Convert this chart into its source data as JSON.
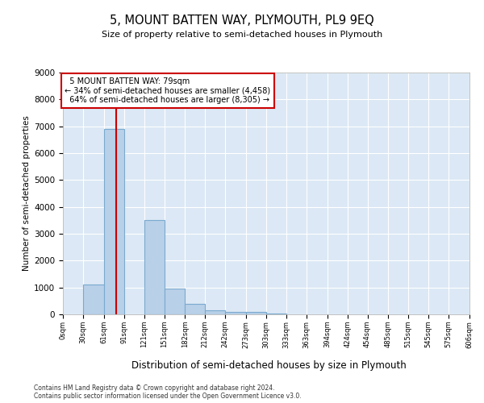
{
  "title1": "5, MOUNT BATTEN WAY, PLYMOUTH, PL9 9EQ",
  "title2": "Size of property relative to semi-detached houses in Plymouth",
  "xlabel": "Distribution of semi-detached houses by size in Plymouth",
  "ylabel": "Number of semi-detached properties",
  "property_size": 79,
  "property_label": "5 MOUNT BATTEN WAY: 79sqm",
  "pct_smaller": 34,
  "pct_larger": 64,
  "count_smaller": 4458,
  "count_larger": 8305,
  "footnote1": "Contains HM Land Registry data © Crown copyright and database right 2024.",
  "footnote2": "Contains public sector information licensed under the Open Government Licence v3.0.",
  "bar_edges": [
    0,
    30,
    61,
    91,
    121,
    151,
    182,
    212,
    242,
    273,
    303,
    333,
    363,
    394,
    424,
    454,
    485,
    515,
    545,
    575,
    606
  ],
  "bar_heights": [
    0,
    1100,
    6900,
    0,
    3500,
    950,
    400,
    150,
    100,
    80,
    30,
    0,
    0,
    0,
    0,
    0,
    0,
    0,
    0,
    0
  ],
  "bar_color": "#b8d0e8",
  "bar_edge_color": "#7aaacf",
  "line_color": "#cc0000",
  "box_color": "#cc0000",
  "bg_color": "#dce8f5",
  "grid_color": "#ffffff",
  "ylim": [
    0,
    9000
  ],
  "yticks": [
    0,
    1000,
    2000,
    3000,
    4000,
    5000,
    6000,
    7000,
    8000,
    9000
  ]
}
